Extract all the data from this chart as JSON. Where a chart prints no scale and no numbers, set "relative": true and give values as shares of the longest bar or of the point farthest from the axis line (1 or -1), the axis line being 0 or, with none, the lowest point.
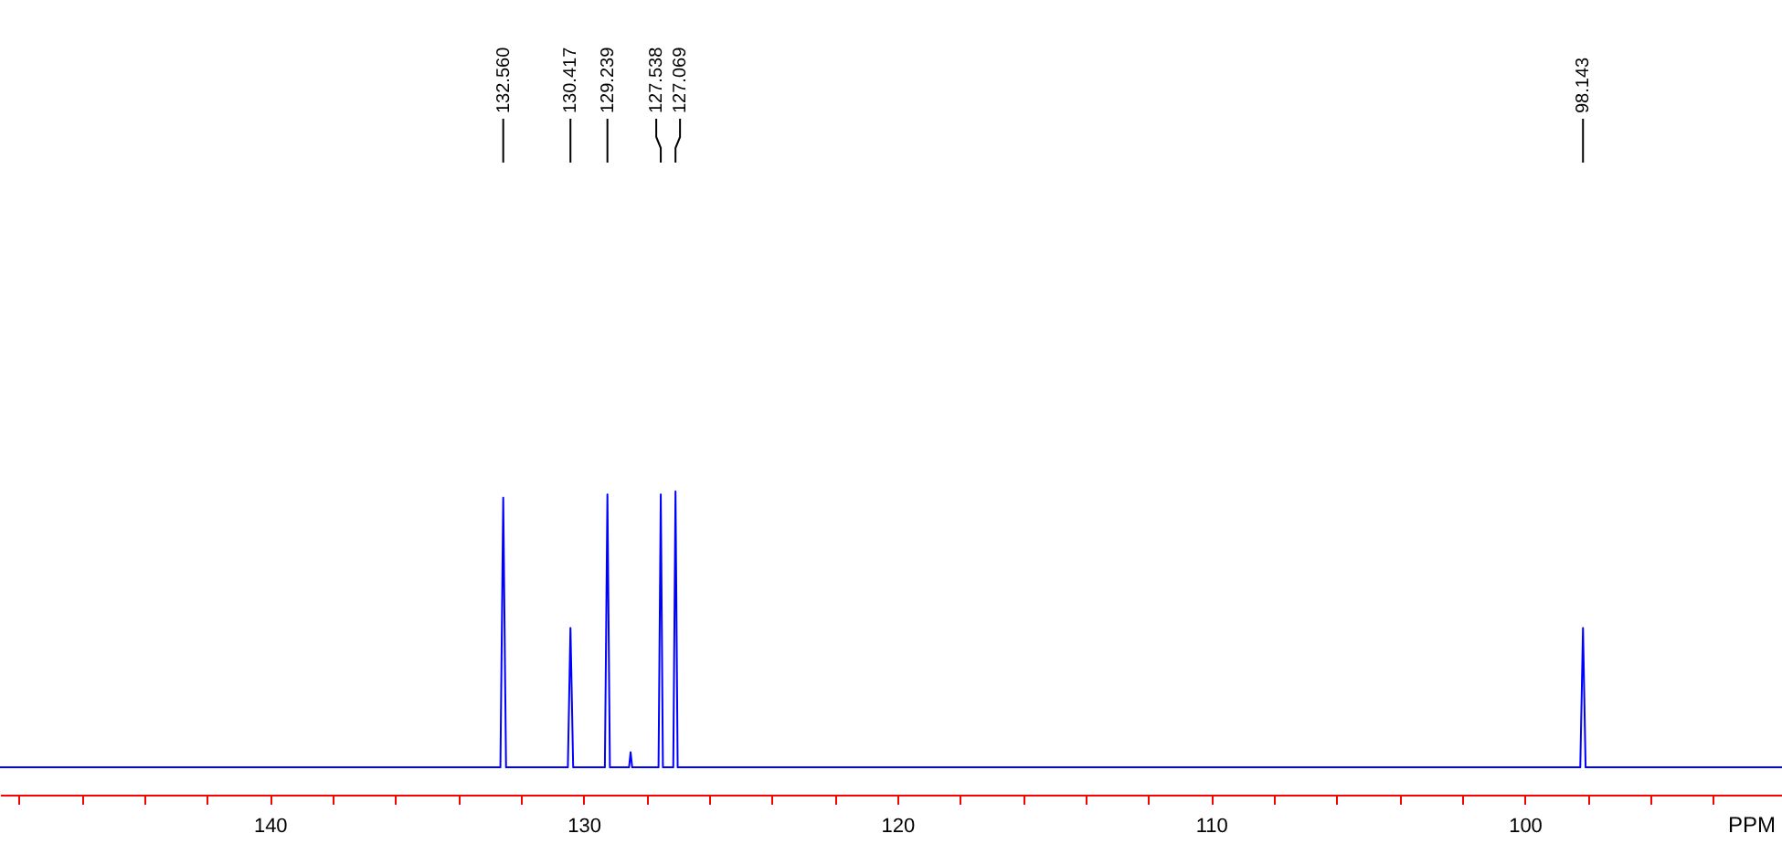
{
  "chart_data": {
    "type": "line",
    "relative": true,
    "xlabel": "PPM",
    "xlim": [
      148.6,
      91.8
    ],
    "xticks": [
      {
        "value": 148,
        "label": null
      },
      {
        "value": 146,
        "label": null
      },
      {
        "value": 144,
        "label": null
      },
      {
        "value": 142,
        "label": null
      },
      140,
      {
        "value": 138,
        "label": null
      },
      {
        "value": 136,
        "label": null
      },
      {
        "value": 134,
        "label": null
      },
      {
        "value": 132,
        "label": null
      },
      130,
      {
        "value": 128,
        "label": null
      },
      {
        "value": 126,
        "label": null
      },
      {
        "value": 124,
        "label": null
      },
      {
        "value": 122,
        "label": null
      },
      120,
      {
        "value": 118,
        "label": null
      },
      {
        "value": 116,
        "label": null
      },
      {
        "value": 114,
        "label": null
      },
      {
        "value": 112,
        "label": null
      },
      110,
      {
        "value": 108,
        "label": null
      },
      {
        "value": 106,
        "label": null
      },
      {
        "value": 104,
        "label": null
      },
      {
        "value": 102,
        "label": null
      },
      100,
      {
        "value": 98,
        "label": null
      },
      {
        "value": 96,
        "label": null
      },
      {
        "value": 94,
        "label": null
      }
    ],
    "series": [
      {
        "color": "#0000ff",
        "x": [
          148.6,
          132.65,
          132.56,
          132.47,
          130.5,
          130.417,
          130.33,
          129.32,
          129.239,
          129.16,
          128.55,
          128.5,
          128.45,
          127.61,
          127.538,
          127.47,
          127.14,
          127.069,
          127.0,
          98.23,
          98.143,
          98.06,
          91.8
        ],
        "values": [
          0.09,
          0.09,
          0.98,
          0.09,
          0.09,
          0.55,
          0.09,
          0.09,
          0.99,
          0.09,
          0.09,
          0.14,
          0.09,
          0.09,
          0.99,
          0.09,
          0.09,
          1.0,
          0.09,
          0.09,
          0.55,
          0.09,
          0.09
        ]
      }
    ],
    "annotations": [
      {
        "text": "132.560",
        "x": 132.56
      },
      {
        "text": "130.417",
        "x": 130.417
      },
      {
        "text": "129.239",
        "x": 129.239
      },
      {
        "text": "127.538",
        "x": 127.538
      },
      {
        "text": "127.069",
        "x": 127.069
      },
      {
        "text": "98.143",
        "x": 98.143
      }
    ],
    "grid": false,
    "marker": "none",
    "line_style": "solid"
  }
}
